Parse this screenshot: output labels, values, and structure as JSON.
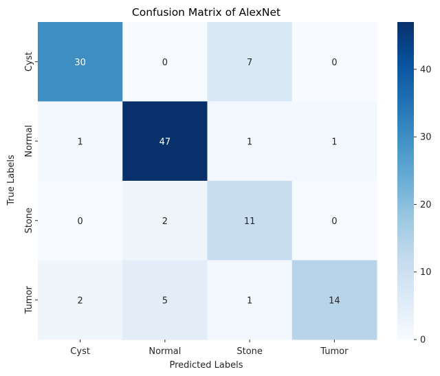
{
  "chart_data": {
    "type": "heatmap",
    "title": "Confusion Matrix of AlexNet",
    "xlabel": "Predicted Labels",
    "ylabel": "True Labels",
    "x_categories": [
      "Cyst",
      "Normal",
      "Stone",
      "Tumor"
    ],
    "y_categories": [
      "Cyst",
      "Normal",
      "Stone",
      "Tumor"
    ],
    "values": [
      [
        30,
        0,
        7,
        0
      ],
      [
        1,
        47,
        1,
        1
      ],
      [
        0,
        2,
        11,
        0
      ],
      [
        2,
        5,
        1,
        14
      ]
    ],
    "colorbar": {
      "min": 0,
      "max": 47,
      "ticks": [
        0,
        10,
        20,
        30,
        40
      ]
    },
    "colormap": "Blues",
    "annotations": true,
    "grid": false
  }
}
